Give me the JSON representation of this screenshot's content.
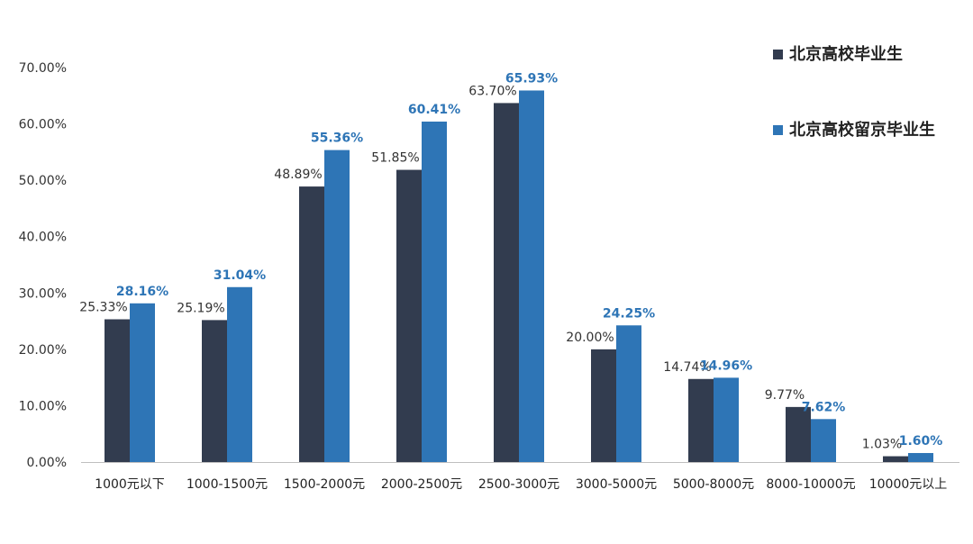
{
  "chart_data": {
    "type": "bar",
    "title": "",
    "xlabel": "",
    "ylabel": "",
    "ylim": [
      0,
      70
    ],
    "yticks": [
      "0.00%",
      "10.00%",
      "20.00%",
      "30.00%",
      "40.00%",
      "50.00%",
      "60.00%",
      "70.00%"
    ],
    "grid": false,
    "legend_position": "top-right",
    "categories": [
      "1000元以下",
      "1000-1500元",
      "1500-2000元",
      "2000-2500元",
      "2500-3000元",
      "3000-5000元",
      "5000-8000元",
      "8000-10000元",
      "10000元以上"
    ],
    "series": [
      {
        "name": "北京高校毕业生",
        "color": "#323c4f",
        "label_color": "#333333",
        "values": [
          25.33,
          25.19,
          48.89,
          51.85,
          63.7,
          20.0,
          14.74,
          9.77,
          1.03
        ],
        "labels": [
          "25.33%",
          "25.19%",
          "48.89%",
          "51.85%",
          "63.70%",
          "20.00%",
          "14.74%",
          "9.77%",
          "1.03%"
        ]
      },
      {
        "name": "北京高校留京毕业生",
        "color": "#2e75b6",
        "label_color": "#2e75b6",
        "values": [
          28.16,
          31.04,
          55.36,
          60.41,
          65.93,
          24.25,
          14.96,
          7.62,
          1.6
        ],
        "labels": [
          "28.16%",
          "31.04%",
          "55.36%",
          "60.41%",
          "65.93%",
          "24.25%",
          "14.96%",
          "7.62%",
          "1.60%"
        ]
      }
    ]
  }
}
